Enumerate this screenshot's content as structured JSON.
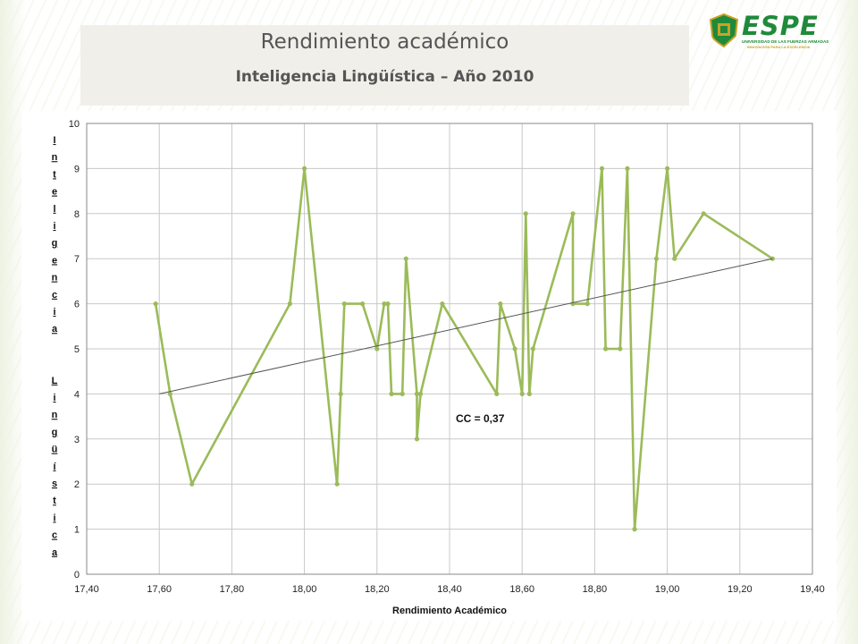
{
  "header": {
    "title": "Rendimiento académico",
    "subtitle": "Inteligencia  Lingüística – Año 2010"
  },
  "logo": {
    "word": "ESPE",
    "line1": "UNIVERSIDAD DE LAS FUERZAS ARMADAS",
    "line2": "INNOVACIÓN PARA LA EXCELENCIA",
    "colors": {
      "green": "#1f8a3a",
      "gold": "#c9a227"
    }
  },
  "chart_data": {
    "type": "scatter",
    "xlabel": "Rendimiento Académico",
    "ylabel": "Inteligencia Lingüística",
    "xlim": [
      17.4,
      19.4
    ],
    "ylim": [
      0,
      10
    ],
    "x_ticks": [
      "17,40",
      "17,60",
      "17,80",
      "18,00",
      "18,20",
      "18,40",
      "18,60",
      "18,80",
      "19,00",
      "19,20",
      "19,40"
    ],
    "y_ticks": [
      "0",
      "1",
      "2",
      "3",
      "4",
      "5",
      "6",
      "7",
      "8",
      "9",
      "10"
    ],
    "grid": true,
    "series_color": "#9bbb59",
    "trend_color": "#555555",
    "points": [
      [
        17.59,
        6
      ],
      [
        17.63,
        4
      ],
      [
        17.69,
        2
      ],
      [
        17.96,
        6
      ],
      [
        18.0,
        9
      ],
      [
        18.09,
        2
      ],
      [
        18.1,
        4
      ],
      [
        18.11,
        6
      ],
      [
        18.16,
        6
      ],
      [
        18.2,
        5
      ],
      [
        18.22,
        6
      ],
      [
        18.23,
        6
      ],
      [
        18.24,
        4
      ],
      [
        18.27,
        4
      ],
      [
        18.28,
        7
      ],
      [
        18.31,
        4
      ],
      [
        18.31,
        3
      ],
      [
        18.32,
        4
      ],
      [
        18.38,
        6
      ],
      [
        18.53,
        4
      ],
      [
        18.54,
        6
      ],
      [
        18.58,
        5
      ],
      [
        18.6,
        4
      ],
      [
        18.61,
        8
      ],
      [
        18.62,
        4
      ],
      [
        18.63,
        5
      ],
      [
        18.74,
        8
      ],
      [
        18.74,
        6
      ],
      [
        18.78,
        6
      ],
      [
        18.82,
        9
      ],
      [
        18.83,
        5
      ],
      [
        18.87,
        5
      ],
      [
        18.89,
        9
      ],
      [
        18.91,
        1
      ],
      [
        18.97,
        7
      ],
      [
        19.0,
        9
      ],
      [
        19.02,
        7
      ],
      [
        19.1,
        8
      ],
      [
        19.29,
        7
      ]
    ],
    "trendline": [
      [
        17.6,
        4.0
      ],
      [
        19.29,
        7.0
      ]
    ],
    "annotation": "CC = 0,37"
  }
}
